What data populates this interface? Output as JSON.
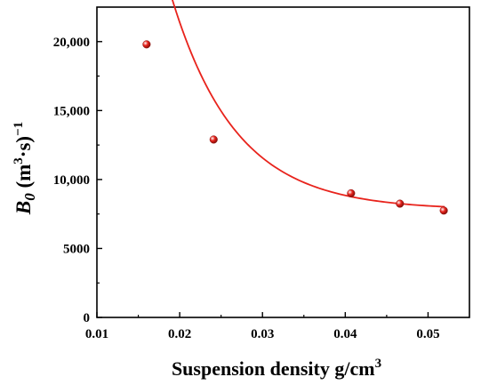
{
  "chart_data": {
    "type": "scatter",
    "xlabel_main": "Suspension density g/cm",
    "xlabel_sup": "3",
    "ylabel_symbol": "B",
    "ylabel_sub": "0",
    "ylabel_unit_open": " (m",
    "ylabel_unit_sup": "3",
    "ylabel_unit_mid": "·s)",
    "ylabel_unit_exp": "−1",
    "xlim": [
      0.01,
      0.055
    ],
    "ylim": [
      0,
      22500
    ],
    "x_ticks": [
      0.01,
      0.02,
      0.03,
      0.04,
      0.05
    ],
    "x_tick_labels": [
      "0.01",
      "0.02",
      "0.03",
      "0.04",
      "0.05"
    ],
    "y_ticks": [
      0,
      5000,
      10000,
      15000,
      20000
    ],
    "y_tick_labels": [
      "0",
      "5000",
      "10,000",
      "15,000",
      "20,000"
    ],
    "grid": false,
    "series": [
      {
        "marker": "sphere",
        "color": "#e8231c",
        "points": [
          {
            "x": 0.016,
            "y": 19800
          },
          {
            "x": 0.0241,
            "y": 12900
          },
          {
            "x": 0.0407,
            "y": 9000
          },
          {
            "x": 0.0466,
            "y": 8250
          },
          {
            "x": 0.0519,
            "y": 7750
          }
        ]
      }
    ],
    "fit_curve": {
      "type": "exponential-decay",
      "color": "#e8231c",
      "y0": 7800,
      "A": 49000,
      "t": 0.0078,
      "x_range": [
        0.016,
        0.052
      ]
    }
  }
}
